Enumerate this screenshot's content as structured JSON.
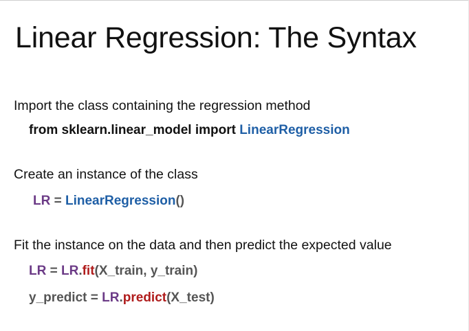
{
  "slide": {
    "title": "Linear Regression: The Syntax",
    "steps": [
      {
        "description": "Import the class containing the regression method",
        "code": {
          "t1": "from sklearn.linear_model import ",
          "t2": "LinearRegression"
        }
      },
      {
        "description": "Create an instance of the class",
        "code": {
          "t1": "LR",
          "t2": " = ",
          "t3": "LinearRegression",
          "t4": "()"
        }
      },
      {
        "description": "Fit the instance on the data and then predict the expected value",
        "code": {
          "t1": "LR",
          "t2": " = ",
          "t3": "LR",
          "t4": ".",
          "t5": "fit",
          "t6": "(X_train, y_train)"
        }
      },
      {
        "code": {
          "t1": "y_predict",
          "t2": " = ",
          "t3": "LR",
          "t4": ".",
          "t5": "predict",
          "t6": "(X_test)"
        }
      }
    ]
  },
  "colors": {
    "text": "#111111",
    "class_blue": "#1f5fa6",
    "variable_purple": "#6b3a86",
    "method_red": "#b01c1c",
    "punctuation_gray": "#555555"
  }
}
